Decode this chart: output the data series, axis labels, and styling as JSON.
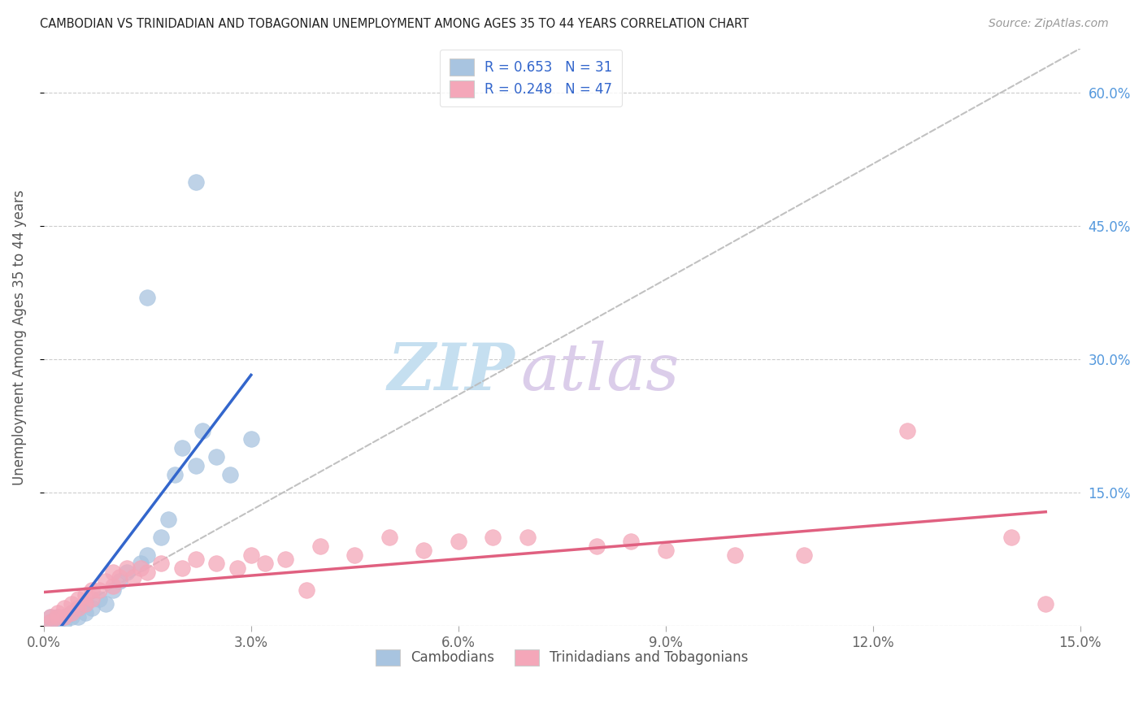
{
  "title": "CAMBODIAN VS TRINIDADIAN AND TOBAGONIAN UNEMPLOYMENT AMONG AGES 35 TO 44 YEARS CORRELATION CHART",
  "source": "Source: ZipAtlas.com",
  "ylabel": "Unemployment Among Ages 35 to 44 years",
  "xlim": [
    0.0,
    0.15
  ],
  "ylim": [
    0.0,
    0.65
  ],
  "xticks": [
    0.0,
    0.03,
    0.06,
    0.09,
    0.12,
    0.15
  ],
  "xticklabels": [
    "0.0%",
    "3.0%",
    "6.0%",
    "9.0%",
    "12.0%",
    "15.0%"
  ],
  "yticks": [
    0.0,
    0.15,
    0.3,
    0.45,
    0.6
  ],
  "right_yticklabels": [
    "",
    "15.0%",
    "30.0%",
    "45.0%",
    "60.0%"
  ],
  "cambodian_color": "#a8c4e0",
  "trinidadian_color": "#f4a7b9",
  "cambodian_line_color": "#3366cc",
  "trinidadian_line_color": "#e06080",
  "diagonal_color": "#bbbbbb",
  "watermark_zip": "ZIP",
  "watermark_atlas": "atlas",
  "legend_R1": "R = 0.653",
  "legend_N1": "N = 31",
  "legend_R2": "R = 0.248",
  "legend_N2": "N = 47",
  "legend_label1": "Cambodians",
  "legend_label2": "Trinidadians and Tobagonians",
  "cambodian_x": [
    0.001,
    0.001,
    0.002,
    0.002,
    0.003,
    0.003,
    0.004,
    0.004,
    0.005,
    0.005,
    0.006,
    0.006,
    0.007,
    0.008,
    0.009,
    0.01,
    0.011,
    0.012,
    0.014,
    0.015,
    0.017,
    0.018,
    0.019,
    0.02,
    0.022,
    0.023,
    0.025,
    0.027,
    0.03,
    0.015,
    0.022
  ],
  "cambodian_y": [
    0.005,
    0.01,
    0.01,
    0.005,
    0.01,
    0.005,
    0.01,
    0.015,
    0.01,
    0.02,
    0.015,
    0.025,
    0.02,
    0.03,
    0.025,
    0.04,
    0.05,
    0.06,
    0.07,
    0.08,
    0.1,
    0.12,
    0.17,
    0.2,
    0.18,
    0.22,
    0.19,
    0.17,
    0.21,
    0.37,
    0.5
  ],
  "trinidadian_x": [
    0.001,
    0.001,
    0.002,
    0.002,
    0.003,
    0.003,
    0.004,
    0.004,
    0.005,
    0.005,
    0.006,
    0.006,
    0.007,
    0.007,
    0.008,
    0.009,
    0.01,
    0.01,
    0.011,
    0.012,
    0.013,
    0.014,
    0.015,
    0.017,
    0.02,
    0.022,
    0.025,
    0.028,
    0.03,
    0.032,
    0.035,
    0.038,
    0.04,
    0.045,
    0.05,
    0.055,
    0.06,
    0.065,
    0.07,
    0.08,
    0.085,
    0.09,
    0.1,
    0.11,
    0.125,
    0.14,
    0.145
  ],
  "trinidadian_y": [
    0.005,
    0.01,
    0.01,
    0.015,
    0.01,
    0.02,
    0.015,
    0.025,
    0.02,
    0.03,
    0.025,
    0.035,
    0.03,
    0.04,
    0.04,
    0.05,
    0.045,
    0.06,
    0.055,
    0.065,
    0.055,
    0.065,
    0.06,
    0.07,
    0.065,
    0.075,
    0.07,
    0.065,
    0.08,
    0.07,
    0.075,
    0.04,
    0.09,
    0.08,
    0.1,
    0.085,
    0.095,
    0.1,
    0.1,
    0.09,
    0.095,
    0.085,
    0.08,
    0.08,
    0.22,
    0.1,
    0.025
  ]
}
